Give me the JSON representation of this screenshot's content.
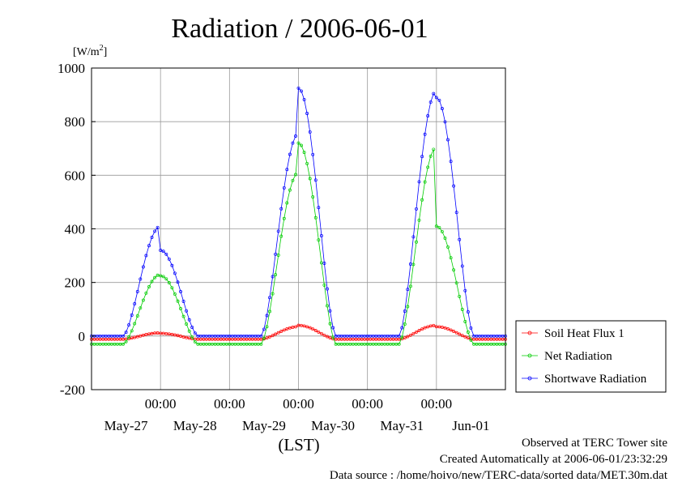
{
  "chart_data": {
    "type": "line",
    "title": "Radiation / 2006-06-01",
    "ylabel": "[W/m2]",
    "y_unit_base": "[W/m",
    "y_unit_sup": "2",
    "y_unit_close": "]",
    "xlabel": "(LST)",
    "ylim": [
      -200,
      1000
    ],
    "yticks": [
      -200,
      0,
      200,
      400,
      600,
      800,
      1000
    ],
    "xlim_hours": [
      -72,
      0
    ],
    "x_time_labels": [
      "00:00",
      "00:00",
      "00:00",
      "00:00",
      "00:00"
    ],
    "x_date_labels": [
      "May-27",
      "May-28",
      "May-29",
      "May-30",
      "May-31",
      "Jun-01"
    ],
    "grid": true,
    "legend_position": "right",
    "series": [
      {
        "name": "Soil Heat Flux 1",
        "color": "#ff0000",
        "day_peaks": [
          12,
          10,
          35,
          40,
          40,
          35
        ],
        "night_level": -12
      },
      {
        "name": "Net Radiation",
        "color": "#00cc00",
        "day_peaks": [
          230,
          225,
          610,
          720,
          705,
          410
        ],
        "night_level": -30
      },
      {
        "name": "Shortwave Radiation",
        "color": "#0000ff",
        "day_peaks": [
          410,
          320,
          755,
          925,
          915,
          890
        ],
        "night_level": 0
      }
    ],
    "footer": {
      "line1": "Observed at TERC Tower site",
      "line2": "Created Automatically at 2006-06-01/23:32:29",
      "line3": "Data source : /home/hoivo/new/TERC-data/sorted  data/MET.30m.dat"
    }
  }
}
